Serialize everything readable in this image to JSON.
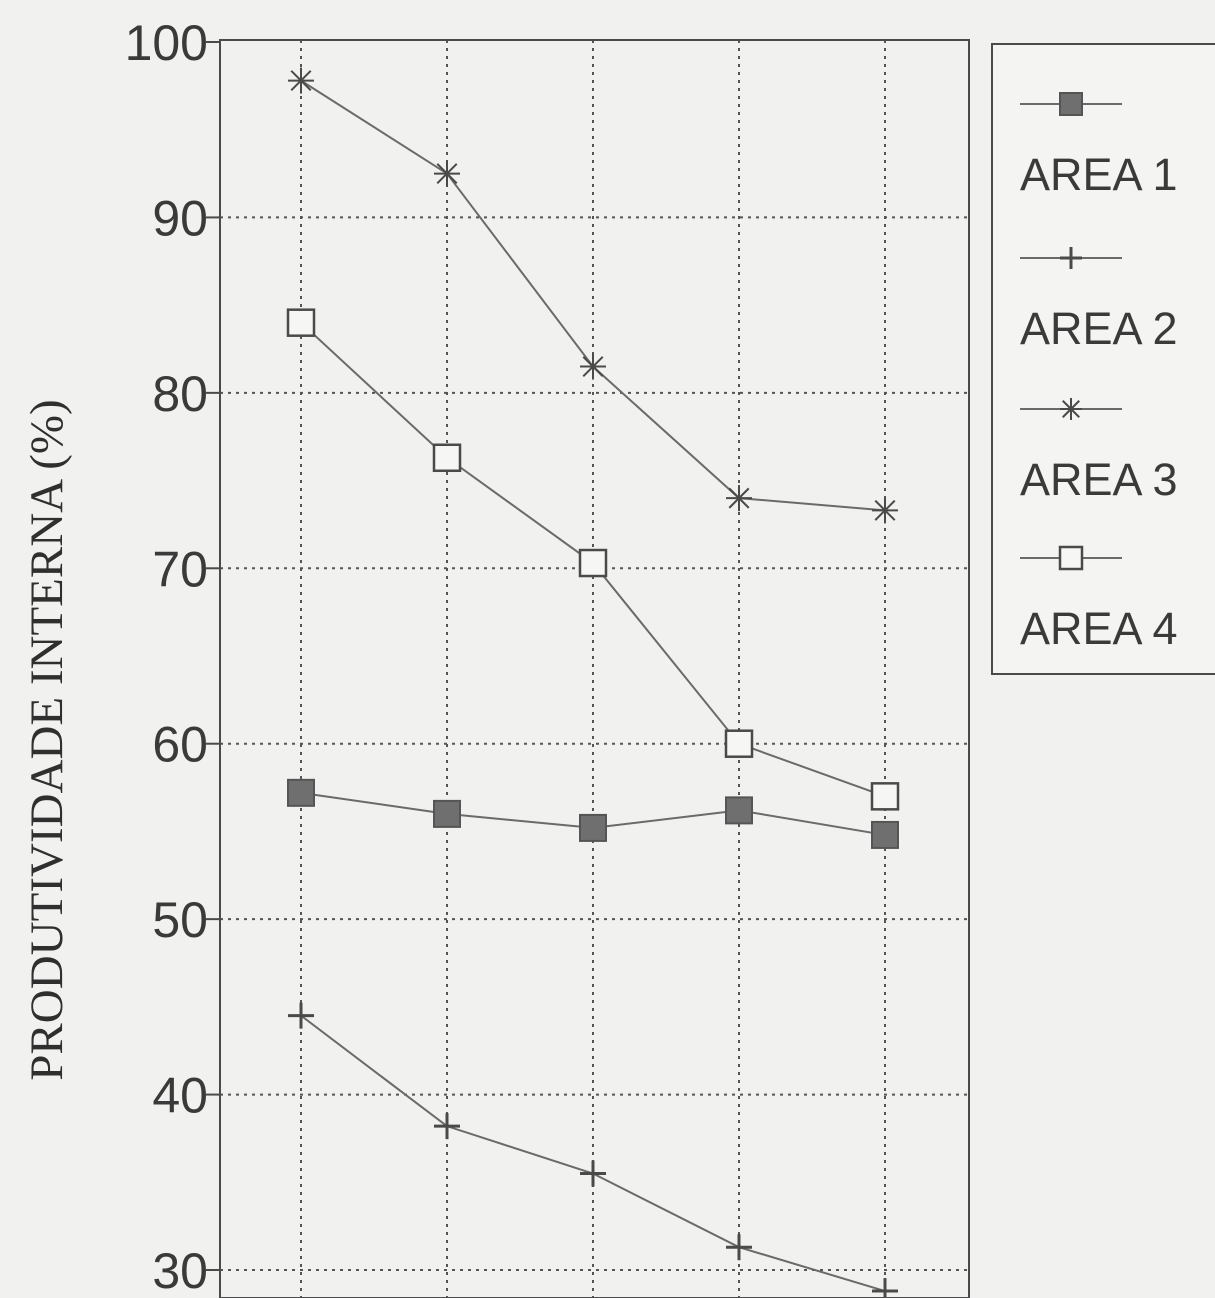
{
  "chart_data": {
    "type": "line",
    "ylabel": "PRODUTIVIDADE INTERNA (%)",
    "xlabel": "",
    "ylim": [
      30,
      100
    ],
    "yticks": [
      30,
      40,
      50,
      60,
      70,
      80,
      90,
      100
    ],
    "x": [
      1,
      2,
      3,
      4,
      5
    ],
    "xlim": [
      0,
      6
    ],
    "grid": true,
    "legend_position": "top-right",
    "series": [
      {
        "name": "AREA 1",
        "marker": "filled-square",
        "values": [
          57.2,
          56.0,
          55.2,
          56.2,
          54.8
        ]
      },
      {
        "name": "AREA 2",
        "marker": "plus",
        "values": [
          44.5,
          38.2,
          35.5,
          31.3,
          28.8
        ]
      },
      {
        "name": "AREA 3",
        "marker": "asterisk",
        "values": [
          97.8,
          92.5,
          81.5,
          74.0,
          73.3
        ]
      },
      {
        "name": "AREA 4",
        "marker": "open-square",
        "values": [
          84.0,
          76.3,
          70.3,
          60.0,
          57.0
        ]
      }
    ]
  },
  "colors": {
    "line": "#6a6a6a",
    "grid": "#555555",
    "axis": "#4a4a4a",
    "background": "#f1f1ef"
  }
}
